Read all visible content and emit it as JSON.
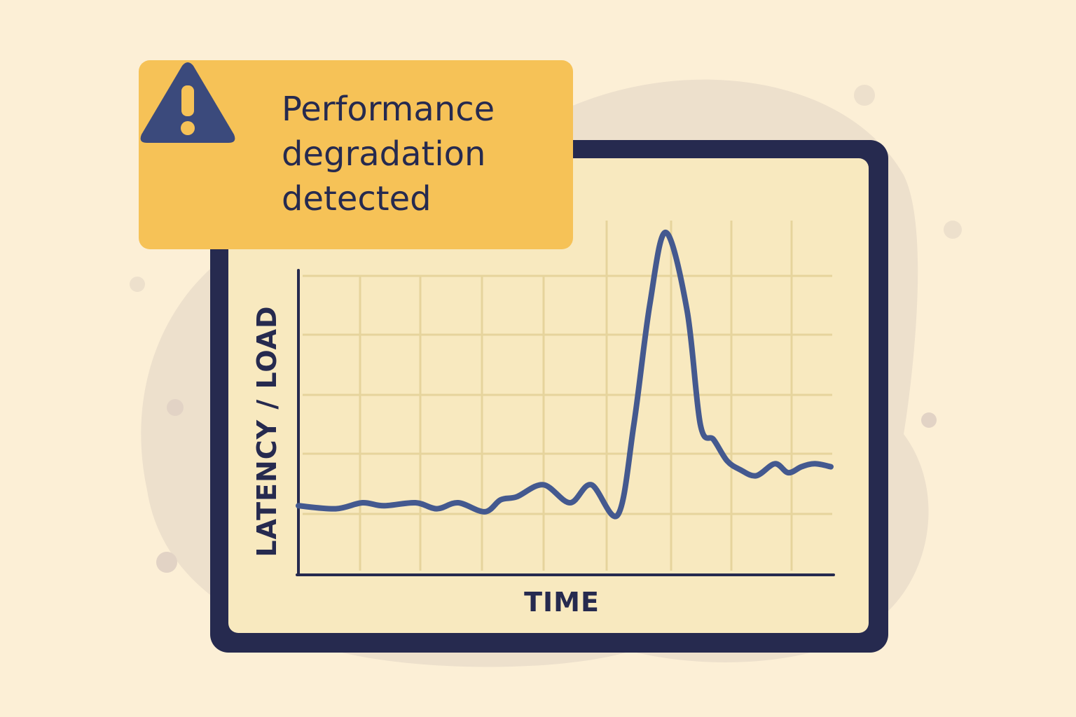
{
  "alert": {
    "icon": "warning-triangle-icon",
    "message": "Performance\ndegradation\ndetected"
  },
  "colors": {
    "background": "#fcefd6",
    "blob": "#ede0cc",
    "panel_frame": "#262a4f",
    "panel_fill": "#f8e9bf",
    "grid": "#e6d49c",
    "line": "#44598f",
    "alert": "#f6c257",
    "text": "#262a4f"
  },
  "chart_data": {
    "type": "line",
    "title": "",
    "xlabel": "TIME",
    "ylabel": "LATENCY / LOAD",
    "grid": true,
    "legend": "none",
    "xlim": [
      0,
      100
    ],
    "ylim": [
      0,
      100
    ],
    "series": [
      {
        "x": [
          0,
          7,
          12,
          16,
          22,
          26,
          30,
          35,
          38,
          41,
          46,
          51,
          55,
          60,
          63,
          66,
          69,
          73,
          75.5,
          78,
          80.5,
          83,
          86,
          89.5,
          92,
          94.5,
          97,
          100
        ],
        "values": [
          23,
          22,
          24,
          23,
          24,
          22,
          24,
          21,
          25,
          26,
          30,
          24,
          30,
          20,
          50,
          90,
          114,
          88,
          50,
          45,
          38,
          35,
          33,
          37,
          34,
          36,
          37,
          36
        ]
      }
    ]
  }
}
